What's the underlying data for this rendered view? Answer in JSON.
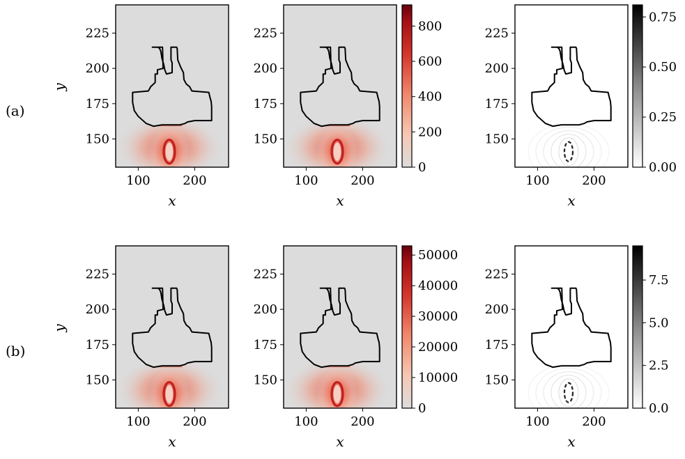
{
  "row_labels": [
    "(a)",
    "(b)"
  ],
  "chart_data": [
    {
      "type": "heatmap",
      "row": "(a)",
      "col": 0,
      "xlabel": "x",
      "ylabel": "y",
      "xlim": [
        60,
        260
      ],
      "ylim": [
        130,
        245
      ],
      "xticks": [
        100,
        200
      ],
      "yticks": [
        150,
        175,
        200,
        225
      ],
      "colormap": "reds",
      "field_peak": 920,
      "hotspot": [
        155,
        141
      ],
      "ring": false
    },
    {
      "type": "heatmap",
      "row": "(a)",
      "col": 1,
      "xlabel": "x",
      "ylabel": "",
      "xlim": [
        60,
        260
      ],
      "ylim": [
        130,
        245
      ],
      "xticks": [
        100,
        200
      ],
      "yticks": [
        150,
        175,
        200,
        225
      ],
      "colormap": "reds",
      "field_peak": 920,
      "hotspot": [
        155,
        141
      ],
      "ring": false,
      "colorbar": {
        "ticks": [
          0,
          200,
          400,
          600,
          800
        ],
        "range": [
          0,
          920
        ],
        "colormap": "reds"
      }
    },
    {
      "type": "heatmap",
      "row": "(a)",
      "col": 2,
      "xlabel": "x",
      "ylabel": "",
      "xlim": [
        60,
        260
      ],
      "ylim": [
        130,
        245
      ],
      "xticks": [
        100,
        200
      ],
      "yticks": [
        150,
        175,
        200,
        225
      ],
      "colormap": "greys",
      "field_peak": 0.8,
      "hotspot": [
        155,
        141
      ],
      "ring": true,
      "colorbar": {
        "ticks": [
          "0.00",
          "0.25",
          "0.50",
          "0.75"
        ],
        "range": [
          0,
          0.81
        ],
        "colormap": "greys"
      }
    },
    {
      "type": "heatmap",
      "row": "(b)",
      "col": 0,
      "xlabel": "x",
      "ylabel": "y",
      "xlim": [
        60,
        260
      ],
      "ylim": [
        130,
        245
      ],
      "xticks": [
        100,
        200
      ],
      "yticks": [
        150,
        175,
        200,
        225
      ],
      "colormap": "reds",
      "field_peak": 53000,
      "hotspot": [
        155,
        140
      ],
      "ring": false
    },
    {
      "type": "heatmap",
      "row": "(b)",
      "col": 1,
      "xlabel": "x",
      "ylabel": "",
      "xlim": [
        60,
        260
      ],
      "ylim": [
        130,
        245
      ],
      "xticks": [
        100,
        200
      ],
      "yticks": [
        150,
        175,
        200,
        225
      ],
      "colormap": "reds",
      "field_peak": 53000,
      "hotspot": [
        155,
        140
      ],
      "ring": false,
      "colorbar": {
        "ticks": [
          0,
          10000,
          20000,
          30000,
          40000,
          50000
        ],
        "range": [
          0,
          53000
        ],
        "colormap": "reds"
      }
    },
    {
      "type": "heatmap",
      "row": "(b)",
      "col": 2,
      "xlabel": "x",
      "ylabel": "",
      "xlim": [
        60,
        260
      ],
      "ylim": [
        130,
        245
      ],
      "xticks": [
        100,
        200
      ],
      "yticks": [
        150,
        175,
        200,
        225
      ],
      "colormap": "greys",
      "field_peak": 9.5,
      "hotspot": [
        155,
        141
      ],
      "ring": true,
      "colorbar": {
        "ticks": [
          "0.0",
          "2.5",
          "5.0",
          "7.5"
        ],
        "range": [
          0,
          9.5
        ],
        "colormap": "greys"
      }
    }
  ],
  "outline_polygon": [
    [
      125,
      215
    ],
    [
      143,
      215
    ],
    [
      144,
      200
    ],
    [
      134,
      199
    ],
    [
      134,
      196
    ],
    [
      130,
      196
    ],
    [
      130,
      190
    ],
    [
      122,
      187
    ],
    [
      118,
      184
    ],
    [
      90,
      183
    ],
    [
      90,
      176
    ],
    [
      93,
      170
    ],
    [
      100,
      166
    ],
    [
      114,
      161
    ],
    [
      127,
      159
    ],
    [
      142,
      160
    ],
    [
      160,
      160
    ],
    [
      165,
      160
    ],
    [
      174,
      160
    ],
    [
      183,
      161
    ],
    [
      187,
      162
    ],
    [
      200,
      163
    ],
    [
      214,
      163
    ],
    [
      230,
      163
    ],
    [
      230,
      173
    ],
    [
      229,
      177
    ],
    [
      228,
      178
    ],
    [
      225,
      183
    ],
    [
      195,
      184
    ],
    [
      191,
      187
    ],
    [
      185,
      189
    ],
    [
      181,
      192
    ],
    [
      180,
      197
    ],
    [
      175,
      201
    ],
    [
      170,
      206
    ],
    [
      169,
      214
    ],
    [
      168,
      215
    ],
    [
      158,
      215
    ],
    [
      158,
      206
    ],
    [
      160,
      204
    ],
    [
      160,
      197
    ],
    [
      150,
      196
    ],
    [
      147,
      199
    ],
    [
      145,
      203
    ],
    [
      142,
      207
    ],
    [
      140,
      212
    ],
    [
      138,
      214
    ],
    [
      135,
      215
    ]
  ],
  "colors": {
    "background": "#dcdcdc",
    "red_peak": "#67000d",
    "outline": "#000000"
  }
}
